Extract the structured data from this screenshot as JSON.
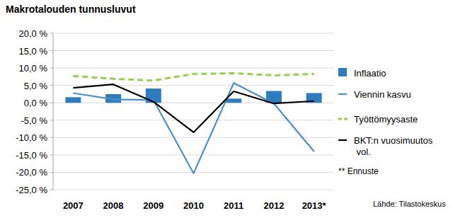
{
  "chart_data": {
    "type": "bar",
    "title": "Makrotalouden tunnusluvut",
    "categories": [
      "2007",
      "2008",
      "2009",
      "2010",
      "2011",
      "2012",
      "2013*"
    ],
    "series": [
      {
        "name": "Inflaatio",
        "type": "bar",
        "color": "#2e7bbf",
        "values": [
          1.6,
          2.5,
          4.1,
          0.0,
          1.2,
          3.4,
          2.8
        ]
      },
      {
        "name": "Viennin kasvu",
        "type": "line",
        "color": "#4b8fc9",
        "line_style": "solid",
        "values": [
          2.8,
          1.0,
          0.8,
          -20.3,
          5.7,
          -0.2,
          -14.0
        ]
      },
      {
        "name": "Työttömyysaste",
        "type": "line",
        "color": "#92d050",
        "line_style": "dashed",
        "values": [
          7.7,
          6.9,
          6.4,
          8.3,
          8.5,
          7.9,
          8.3
        ]
      },
      {
        "name": "BKT:n vuosimuutos vol.",
        "type": "line",
        "color": "#000000",
        "line_style": "solid",
        "values": [
          4.3,
          5.3,
          0.3,
          -8.5,
          3.3,
          -0.2,
          0.5
        ]
      }
    ],
    "ylim": [
      -25,
      20
    ],
    "yticks": [
      {
        "value": -25,
        "label": "-25,0 %"
      },
      {
        "value": -20,
        "label": "-20,0 %"
      },
      {
        "value": -15,
        "label": "-15,0 %"
      },
      {
        "value": -10,
        "label": "-10,0 %"
      },
      {
        "value": -5,
        "label": "-5,0 %"
      },
      {
        "value": 0,
        "label": "0,0 %"
      },
      {
        "value": 5,
        "label": "5,0 %"
      },
      {
        "value": 10,
        "label": "10,0 %"
      },
      {
        "value": 15,
        "label": "15,0 %"
      },
      {
        "value": 20,
        "label": "20,0 %"
      }
    ],
    "grid": true,
    "legend": "right",
    "annotations": [
      "** Ennuste",
      "Lähde: Tilastokeskus"
    ]
  }
}
